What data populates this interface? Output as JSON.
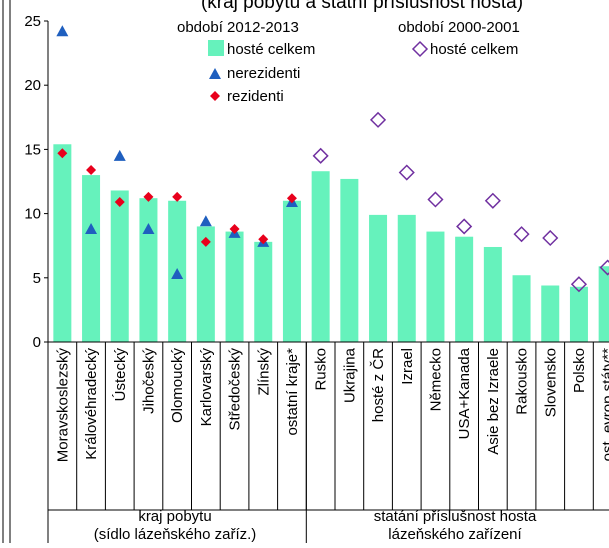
{
  "chart_data": {
    "type": "bar",
    "title": "(kraj pobytu a státní příslušnost hosta)",
    "ylim": [
      0,
      25
    ],
    "yticks": [
      0,
      5,
      10,
      15,
      20,
      25
    ],
    "grid": false,
    "categories": [
      "Moravskoslezský",
      "Královéhradecký",
      "Ústecký",
      "Jihočeský",
      "Olomoucký",
      "Karlovarský",
      "Středočeský",
      "Zlínský",
      "ostatní kraje*",
      "Rusko",
      "Ukrajina",
      "hosté z ČR",
      "Izrael",
      "Německo",
      "USA+Kanada",
      "Asie bez Izraele",
      "Rakousko",
      "Slovensko",
      "Polsko",
      "ost. evrop.státy**"
    ],
    "series": [
      {
        "name": "hosté celkem",
        "marker": "bar",
        "color": "#66f2bc",
        "values": [
          15.4,
          13.0,
          11.8,
          11.2,
          11.0,
          9.0,
          8.6,
          7.8,
          11.0,
          13.3,
          12.7,
          9.9,
          9.9,
          8.6,
          8.2,
          7.4,
          5.2,
          4.4,
          4.3,
          5.9
        ]
      },
      {
        "name": "nerezidenti",
        "marker": "triangle",
        "color": "#1f5fbf",
        "values": [
          24.2,
          8.8,
          14.5,
          8.8,
          5.3,
          9.4,
          8.5,
          7.8,
          10.9,
          null,
          null,
          null,
          null,
          null,
          null,
          null,
          null,
          null,
          null,
          null
        ]
      },
      {
        "name": "rezidenti",
        "marker": "diamond",
        "color": "#e8001c",
        "values": [
          14.7,
          13.4,
          10.9,
          11.3,
          11.3,
          7.8,
          8.8,
          8.0,
          11.2,
          null,
          null,
          null,
          null,
          null,
          null,
          null,
          null,
          null,
          null,
          null
        ]
      },
      {
        "name": "hosté celkem",
        "marker": "open-diamond",
        "color": "#7030a0",
        "values": [
          null,
          null,
          null,
          null,
          null,
          null,
          null,
          null,
          null,
          14.5,
          null,
          17.3,
          13.2,
          11.1,
          9.0,
          11.0,
          8.4,
          8.1,
          4.5,
          5.8
        ]
      }
    ],
    "legend": {
      "group1_title": "období 2012-2013",
      "group2_title": "období 2000-2001",
      "items": [
        {
          "label": "hosté celkem",
          "marker": "bar"
        },
        {
          "label": "nerezidenti",
          "marker": "triangle"
        },
        {
          "label": "rezidenti",
          "marker": "diamond"
        },
        {
          "label": "hosté celkem",
          "marker": "open-diamond"
        }
      ]
    },
    "group_labels": [
      {
        "line1": "kraj pobytu",
        "line2": "(sídlo lázeňského zaříz.)"
      },
      {
        "line1": "statání příslušnost hosta",
        "line2": "lázeňského zařízení"
      }
    ]
  }
}
